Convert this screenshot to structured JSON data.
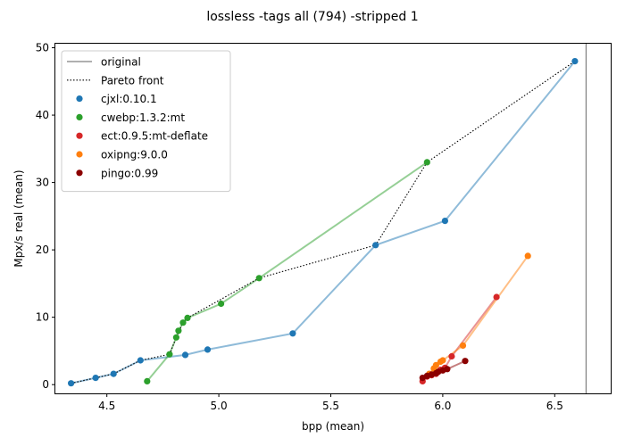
{
  "chart_data": {
    "type": "scatter",
    "title": "lossless -tags all (794) -stripped 1",
    "xlabel": "bpp (mean)",
    "ylabel": "Mpx/s real (mean)",
    "xlim": [
      4.27,
      6.75
    ],
    "ylim": [
      -1.3,
      50.6
    ],
    "xticks": [
      "4.5",
      "5.0",
      "5.5",
      "6.0",
      "6.5"
    ],
    "xtick_values": [
      4.5,
      5.0,
      5.5,
      6.0,
      6.5
    ],
    "yticks": [
      "0",
      "10",
      "20",
      "30",
      "40",
      "50"
    ],
    "ytick_values": [
      0,
      10,
      20,
      30,
      40,
      50
    ],
    "grid": false,
    "legend_position": "top-left",
    "original": {
      "label": "original",
      "x": 6.64,
      "color": "#808080"
    },
    "pareto": {
      "label": "Pareto front",
      "color": "#000000",
      "points": [
        [
          4.34,
          0.2
        ],
        [
          4.45,
          1.0
        ],
        [
          4.53,
          1.6
        ],
        [
          4.65,
          3.6
        ],
        [
          4.78,
          4.5
        ],
        [
          4.81,
          7.0
        ],
        [
          4.84,
          9.2
        ],
        [
          4.86,
          9.9
        ],
        [
          5.18,
          15.8
        ],
        [
          5.7,
          20.7
        ],
        [
          5.93,
          33.0
        ],
        [
          6.59,
          48.0
        ]
      ]
    },
    "series": [
      {
        "name": "cjxl:0.10.1",
        "color": "#1f77b4",
        "points": [
          [
            4.34,
            0.2
          ],
          [
            4.45,
            1.0
          ],
          [
            4.53,
            1.6
          ],
          [
            4.65,
            3.6
          ],
          [
            4.85,
            4.4
          ],
          [
            4.95,
            5.2
          ],
          [
            5.33,
            7.6
          ],
          [
            5.7,
            20.7
          ],
          [
            6.01,
            24.3
          ],
          [
            6.59,
            48.0
          ]
        ]
      },
      {
        "name": "cwebp:1.3.2:mt",
        "color": "#2ca02c",
        "points": [
          [
            4.68,
            0.5
          ],
          [
            4.78,
            4.5
          ],
          [
            4.81,
            7.0
          ],
          [
            4.82,
            8.0
          ],
          [
            4.84,
            9.2
          ],
          [
            4.86,
            9.9
          ],
          [
            5.01,
            12.0
          ],
          [
            5.18,
            15.8
          ],
          [
            5.93,
            33.0
          ]
        ]
      },
      {
        "name": "ect:0.9.5:mt-deflate",
        "color": "#d62728",
        "points": [
          [
            5.91,
            0.5
          ],
          [
            5.93,
            1.2
          ],
          [
            5.95,
            1.4
          ],
          [
            5.97,
            1.6
          ],
          [
            5.99,
            2.2
          ],
          [
            6.01,
            2.5
          ],
          [
            6.04,
            4.2
          ],
          [
            6.24,
            13.0
          ]
        ]
      },
      {
        "name": "oxipng:9.0.0",
        "color": "#ff7f0e",
        "points": [
          [
            5.94,
            1.6
          ],
          [
            5.96,
            2.4
          ],
          [
            5.97,
            2.9
          ],
          [
            5.99,
            3.4
          ],
          [
            6.0,
            3.6
          ],
          [
            6.09,
            5.8
          ],
          [
            6.38,
            19.1
          ]
        ]
      },
      {
        "name": "pingo:0.99",
        "color": "#8b0000",
        "points": [
          [
            5.91,
            1.0
          ],
          [
            5.93,
            1.3
          ],
          [
            5.95,
            1.5
          ],
          [
            5.97,
            1.7
          ],
          [
            5.98,
            1.9
          ],
          [
            6.0,
            2.1
          ],
          [
            6.02,
            2.3
          ],
          [
            6.1,
            3.5
          ]
        ]
      }
    ]
  }
}
